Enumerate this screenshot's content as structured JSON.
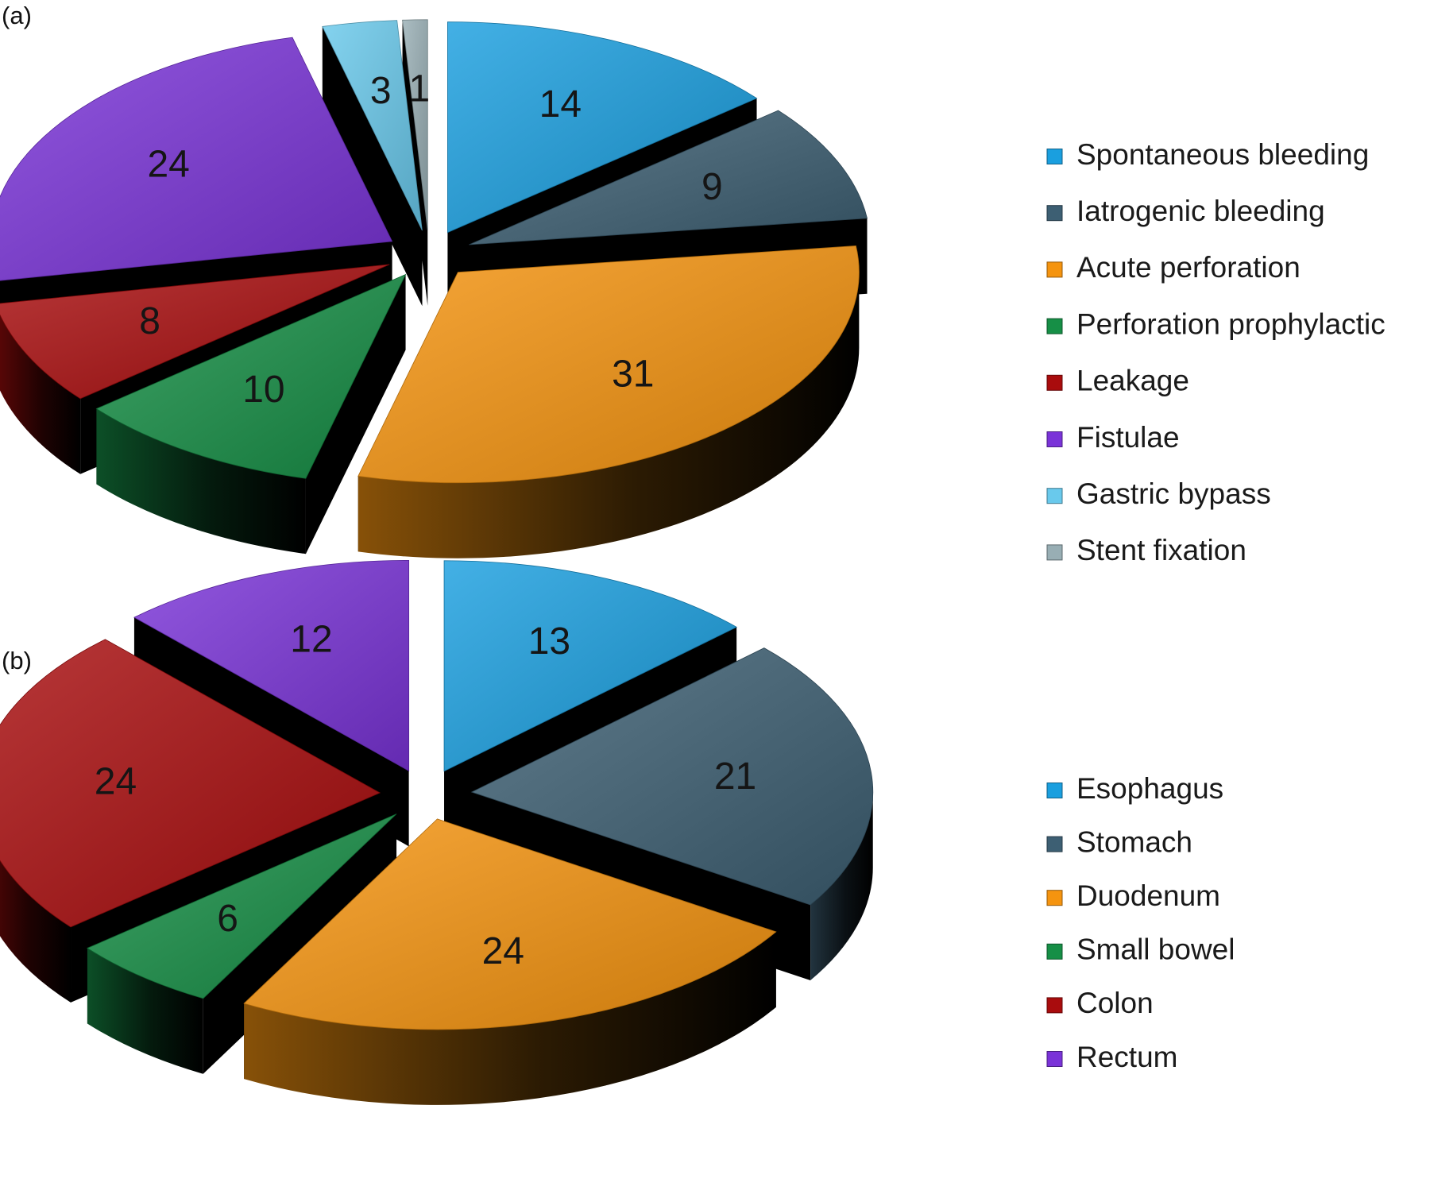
{
  "chart_data": [
    {
      "panel_label": "(a)",
      "type": "pie",
      "title": "",
      "categories": [
        "Spontaneous bleeding",
        "Iatrogenic bleeding",
        "Acute perforation",
        "Perforation prophylactic",
        "Leakage",
        "Fistulae",
        "Gastric bypass",
        "Stent fixation"
      ],
      "values": [
        14,
        9,
        31,
        10,
        8,
        24,
        3,
        1
      ],
      "colors": [
        "#1a9fdf",
        "#3d5f73",
        "#f5940f",
        "#168f46",
        "#a90c0d",
        "#7a33d8",
        "#69c9ec",
        "#98aeb4"
      ],
      "legend_position": "right",
      "style": "3d-exploded"
    },
    {
      "panel_label": "(b)",
      "type": "pie",
      "title": "",
      "categories": [
        "Esophagus",
        "Stomach",
        "Duodenum",
        "Small bowel",
        "Colon",
        "Rectum"
      ],
      "values": [
        13,
        21,
        24,
        6,
        24,
        12
      ],
      "colors": [
        "#1a9fdf",
        "#3d5f73",
        "#f5940f",
        "#168f46",
        "#a90c0d",
        "#7a33d8"
      ],
      "legend_position": "right",
      "style": "3d-exploded"
    }
  ]
}
